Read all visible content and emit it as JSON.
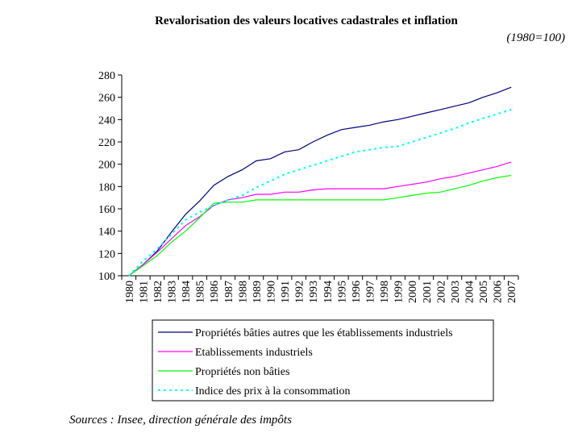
{
  "chart_data": {
    "type": "line",
    "title": "Revalorisation des valeurs locatives cadastrales et inflation",
    "subtitle": "(1980=100)",
    "source": "Sources : Insee, direction générale des impôts",
    "xlabel": "",
    "ylabel": "",
    "ylim": [
      100,
      280
    ],
    "yticks": [
      100,
      120,
      140,
      160,
      180,
      200,
      220,
      240,
      260,
      280
    ],
    "grid": false,
    "legend_placement": "bottom",
    "categories": [
      "1980",
      "1981",
      "1982",
      "1983",
      "1984",
      "1985",
      "1986",
      "1987",
      "1988",
      "1989",
      "1990",
      "1991",
      "1992",
      "1993",
      "1994",
      "1995",
      "1996",
      "1997",
      "1998",
      "1999",
      "2000",
      "2001",
      "2002",
      "2003",
      "2004",
      "2005",
      "2006",
      "2007"
    ],
    "series": [
      {
        "name": "Propriétés bâties autres que les établissements industriels",
        "color": "#000080",
        "dash": false,
        "values": [
          100,
          110,
          122,
          139,
          155,
          167,
          181,
          189,
          195,
          203,
          205,
          211,
          213,
          220,
          226,
          231,
          233,
          235,
          238,
          240,
          243,
          246,
          249,
          252,
          255,
          260,
          264,
          269
        ]
      },
      {
        "name": "Etablissements industriels",
        "color": "#ff00ff",
        "dash": false,
        "values": [
          100,
          110,
          121,
          133,
          145,
          153,
          163,
          168,
          170,
          173,
          173,
          175,
          175,
          177,
          178,
          178,
          178,
          178,
          178,
          180,
          182,
          184,
          187,
          189,
          192,
          195,
          198,
          202
        ]
      },
      {
        "name": "Propriétés non bâties",
        "color": "#00ff00",
        "dash": false,
        "values": [
          100,
          109,
          118,
          130,
          140,
          152,
          165,
          166,
          166,
          168,
          168,
          168,
          168,
          168,
          168,
          168,
          168,
          168,
          168,
          170,
          172,
          174,
          175,
          178,
          181,
          185,
          188,
          190
        ]
      },
      {
        "name": "Indice des prix à la consommation",
        "color": "#00ffff",
        "dash": true,
        "values": [
          100,
          113,
          124,
          137,
          150,
          157,
          163,
          168,
          172,
          179,
          185,
          191,
          195,
          199,
          203,
          207,
          211,
          213,
          215,
          216,
          220,
          224,
          228,
          232,
          237,
          241,
          245,
          249
        ]
      }
    ]
  }
}
